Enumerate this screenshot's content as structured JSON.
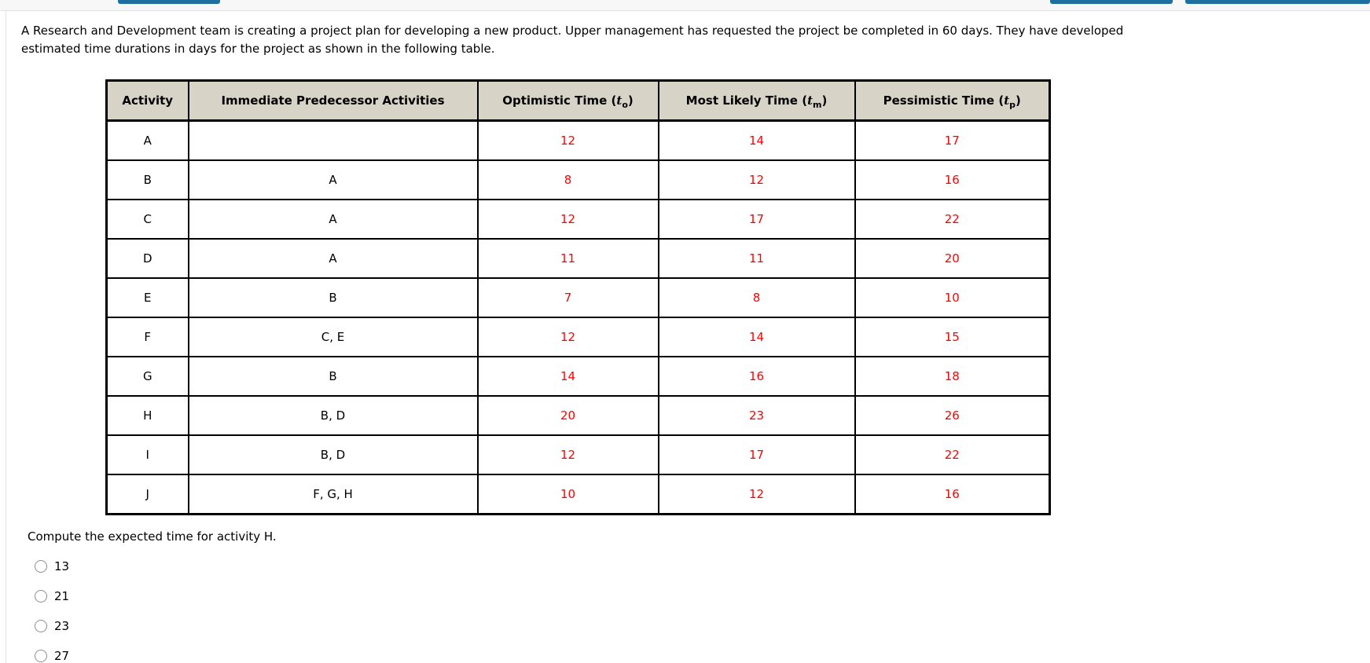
{
  "intro": {
    "lines": [
      "A Research and Development team is creating a project plan for developing a new product. Upper management has requested the project be completed in 60 days. They have developed",
      "estimated time durations in days for the project as shown in the following table."
    ]
  },
  "table": {
    "headers": [
      {
        "text": "Activity"
      },
      {
        "text": "Immediate Predecessor Activities"
      },
      {
        "prefix": "Optimistic Time (",
        "symbol": "t",
        "sub": "o",
        "suffix": ")"
      },
      {
        "prefix": "Most Likely Time (",
        "symbol": "t",
        "sub": "m",
        "suffix": ")"
      },
      {
        "prefix": "Pessimistic Time (",
        "symbol": "t",
        "sub": "p",
        "suffix": ")"
      }
    ],
    "rows": [
      {
        "activity": "A",
        "predecessors": "",
        "optimistic": "12",
        "most_likely": "14",
        "pessimistic": "17"
      },
      {
        "activity": "B",
        "predecessors": "A",
        "optimistic": "8",
        "most_likely": "12",
        "pessimistic": "16"
      },
      {
        "activity": "C",
        "predecessors": "A",
        "optimistic": "12",
        "most_likely": "17",
        "pessimistic": "22"
      },
      {
        "activity": "D",
        "predecessors": "A",
        "optimistic": "11",
        "most_likely": "11",
        "pessimistic": "20"
      },
      {
        "activity": "E",
        "predecessors": "B",
        "optimistic": "7",
        "most_likely": "8",
        "pessimistic": "10"
      },
      {
        "activity": "F",
        "predecessors": "C, E",
        "optimistic": "12",
        "most_likely": "14",
        "pessimistic": "15"
      },
      {
        "activity": "G",
        "predecessors": "B",
        "optimistic": "14",
        "most_likely": "16",
        "pessimistic": "18"
      },
      {
        "activity": "H",
        "predecessors": "B, D",
        "optimistic": "20",
        "most_likely": "23",
        "pessimistic": "26"
      },
      {
        "activity": "I",
        "predecessors": "B, D",
        "optimistic": "12",
        "most_likely": "17",
        "pessimistic": "22"
      },
      {
        "activity": "J",
        "predecessors": "F, G, H",
        "optimistic": "10",
        "most_likely": "12",
        "pessimistic": "16"
      }
    ]
  },
  "question": {
    "text": "Compute the expected time for activity H."
  },
  "options": [
    {
      "label": "13"
    },
    {
      "label": "21"
    },
    {
      "label": "23"
    },
    {
      "label": "27"
    }
  ],
  "colors": {
    "accent_blue": "#1d6fa0",
    "value_red": "#ff0000",
    "table_header_bg": "#d7d3c7"
  }
}
